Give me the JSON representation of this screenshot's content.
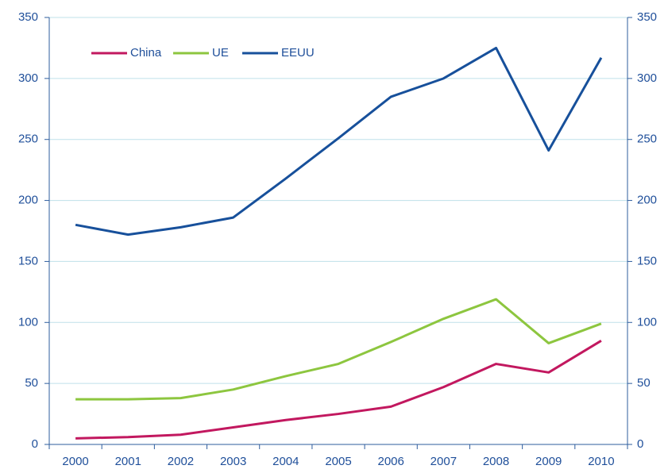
{
  "chart_data": {
    "type": "line",
    "categories": [
      "2000",
      "2001",
      "2002",
      "2003",
      "2004",
      "2005",
      "2006",
      "2007",
      "2008",
      "2009",
      "2010"
    ],
    "series": [
      {
        "name": "China",
        "color": "#c2185f",
        "values": [
          5,
          6,
          8,
          14,
          20,
          25,
          31,
          47,
          66,
          59,
          85
        ]
      },
      {
        "name": "UE",
        "color": "#8dc63f",
        "values": [
          37,
          37,
          38,
          45,
          56,
          66,
          84,
          103,
          119,
          83,
          99
        ]
      },
      {
        "name": "EEUU",
        "color": "#17509b",
        "values": [
          180,
          172,
          178,
          186,
          218,
          251,
          285,
          300,
          325,
          241,
          317
        ]
      }
    ],
    "ylim": [
      0,
      350
    ],
    "yticks": [
      0,
      50,
      100,
      150,
      200,
      250,
      300,
      350
    ],
    "y2lim": [
      0,
      350
    ],
    "y2ticks": [
      0,
      50,
      100,
      150,
      200,
      250,
      300,
      350
    ],
    "grid": true,
    "legend": "top-left"
  }
}
